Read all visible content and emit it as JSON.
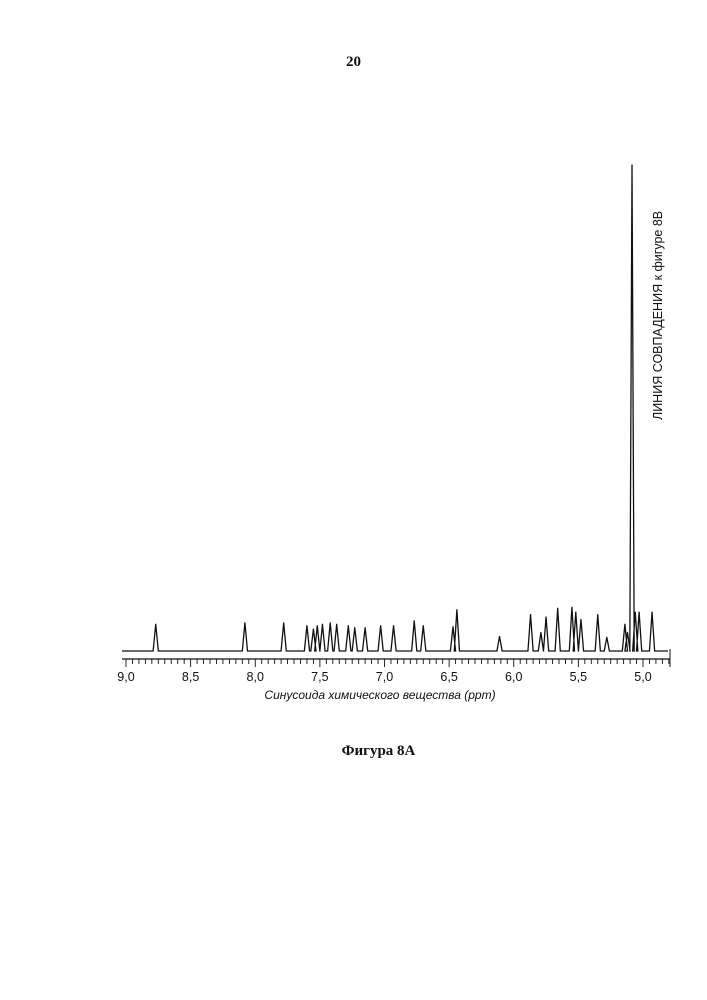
{
  "page": {
    "number": "20",
    "caption": "Фигура 8A"
  },
  "chart_data": {
    "type": "line",
    "xlabel": "Синусоида химического вещества (ppm)",
    "x_reversed": true,
    "xlim": [
      9.0,
      4.8
    ],
    "ylim": [
      0,
      100
    ],
    "x_tick_labels": [
      "9,0",
      "8,5",
      "8,0",
      "7,5",
      "7,0",
      "6,5",
      "6,0",
      "5,5",
      "5,0"
    ],
    "x_tick_values": [
      9.0,
      8.5,
      8.0,
      7.5,
      7.0,
      6.5,
      6.0,
      5.5,
      5.0
    ],
    "minor_tick_step": 0.05,
    "annotation": "ЛИНИЯ СОВПАДЕНИЯ к фигуре 8В",
    "peaks": [
      {
        "ppm": 8.77,
        "height": 5.5
      },
      {
        "ppm": 8.08,
        "height": 5.8
      },
      {
        "ppm": 7.78,
        "height": 5.8
      },
      {
        "ppm": 7.6,
        "height": 5.2
      },
      {
        "ppm": 7.55,
        "height": 4.5
      },
      {
        "ppm": 7.52,
        "height": 5.2
      },
      {
        "ppm": 7.48,
        "height": 5.5
      },
      {
        "ppm": 7.42,
        "height": 5.8
      },
      {
        "ppm": 7.37,
        "height": 5.5
      },
      {
        "ppm": 7.28,
        "height": 5.2
      },
      {
        "ppm": 7.23,
        "height": 4.8
      },
      {
        "ppm": 7.15,
        "height": 4.8
      },
      {
        "ppm": 7.03,
        "height": 5.2
      },
      {
        "ppm": 6.93,
        "height": 5.2
      },
      {
        "ppm": 6.77,
        "height": 6.2
      },
      {
        "ppm": 6.7,
        "height": 5.2
      },
      {
        "ppm": 6.47,
        "height": 5.0
      },
      {
        "ppm": 6.44,
        "height": 8.5
      },
      {
        "ppm": 6.11,
        "height": 3.0
      },
      {
        "ppm": 5.87,
        "height": 7.5
      },
      {
        "ppm": 5.79,
        "height": 3.8
      },
      {
        "ppm": 5.75,
        "height": 7.0
      },
      {
        "ppm": 5.66,
        "height": 8.8
      },
      {
        "ppm": 5.55,
        "height": 9.0
      },
      {
        "ppm": 5.52,
        "height": 8.0
      },
      {
        "ppm": 5.48,
        "height": 6.5
      },
      {
        "ppm": 5.35,
        "height": 7.5
      },
      {
        "ppm": 5.28,
        "height": 2.8
      },
      {
        "ppm": 5.14,
        "height": 5.5
      },
      {
        "ppm": 5.12,
        "height": 3.8
      },
      {
        "ppm": 5.085,
        "height": 100
      },
      {
        "ppm": 5.06,
        "height": 8.0
      },
      {
        "ppm": 5.03,
        "height": 8.0
      },
      {
        "ppm": 4.93,
        "height": 8.0
      }
    ]
  }
}
